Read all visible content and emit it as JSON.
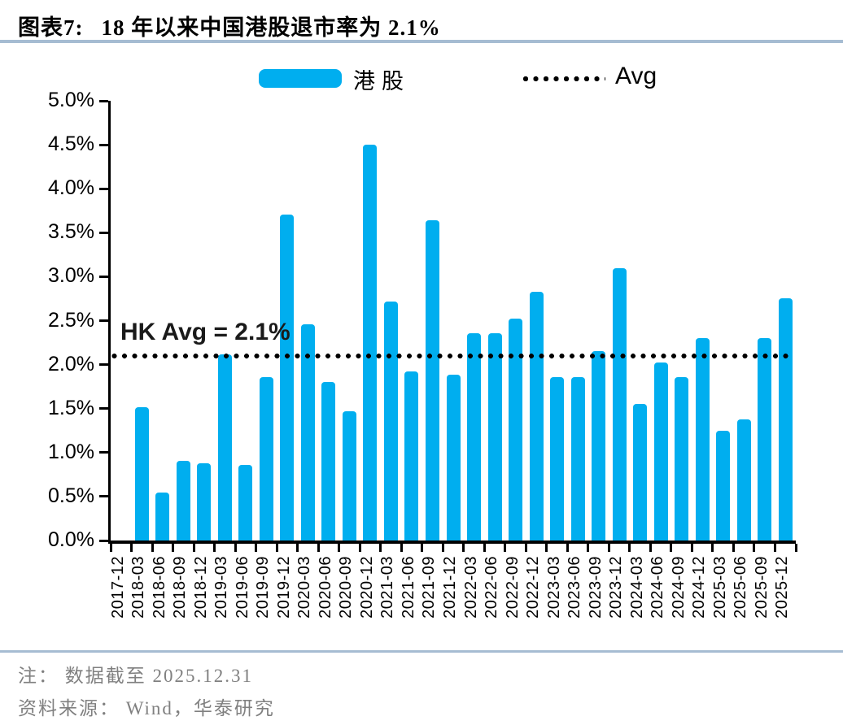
{
  "header": {
    "title_prefix": "图表7:",
    "title_text": "18 年以来中国港股退市率为 2.1%"
  },
  "legend": {
    "bar_label": "港股",
    "avg_label": "Avg"
  },
  "annotation": {
    "avg_text": "HK Avg = 2.1%"
  },
  "footer": {
    "note": "注： 数据截至 2025.12.31",
    "source": "资料来源： Wind，华泰研究"
  },
  "colors": {
    "bar": "#00aeef",
    "avg_line": "#000000",
    "rule": "#a6bcd2",
    "note_text": "#808080"
  },
  "chart_data": {
    "type": "bar",
    "title": "18 年以来中国港股退市率为 2.1%",
    "series_name": "港股",
    "categories": [
      "2017-12",
      "2018-03",
      "2018-06",
      "2018-09",
      "2018-12",
      "2019-03",
      "2019-06",
      "2019-09",
      "2019-12",
      "2020-03",
      "2020-06",
      "2020-09",
      "2020-12",
      "2021-03",
      "2021-06",
      "2021-09",
      "2021-12",
      "2022-03",
      "2022-06",
      "2022-09",
      "2022-12",
      "2023-03",
      "2023-06",
      "2023-09",
      "2023-12",
      "2024-03",
      "2024-06",
      "2024-09",
      "2024-12",
      "2025-03",
      "2025-06",
      "2025-09",
      "2025-12"
    ],
    "values": [
      null,
      1.52,
      0.55,
      0.91,
      0.88,
      2.12,
      0.86,
      1.86,
      3.71,
      2.46,
      1.8,
      1.47,
      4.5,
      2.72,
      1.92,
      3.64,
      1.89,
      2.36,
      2.36,
      2.52,
      2.83,
      1.86,
      1.86,
      2.15,
      3.1,
      1.55,
      2.02,
      1.86,
      2.3,
      1.25,
      1.38,
      2.3,
      2.75
    ],
    "unit": "%",
    "avg_line": {
      "label": "Avg",
      "value": 2.1,
      "annotation": "HK Avg = 2.1%"
    },
    "ylim": [
      0,
      5
    ],
    "ytick_labels": [
      "5.0%",
      "4.5%",
      "4.0%",
      "3.5%",
      "3.0%",
      "2.5%",
      "2.0%",
      "1.5%",
      "1.0%",
      "0.5%",
      "0.0%"
    ],
    "xlabel": "",
    "ylabel": "",
    "grid": false,
    "legend_position": "top"
  }
}
